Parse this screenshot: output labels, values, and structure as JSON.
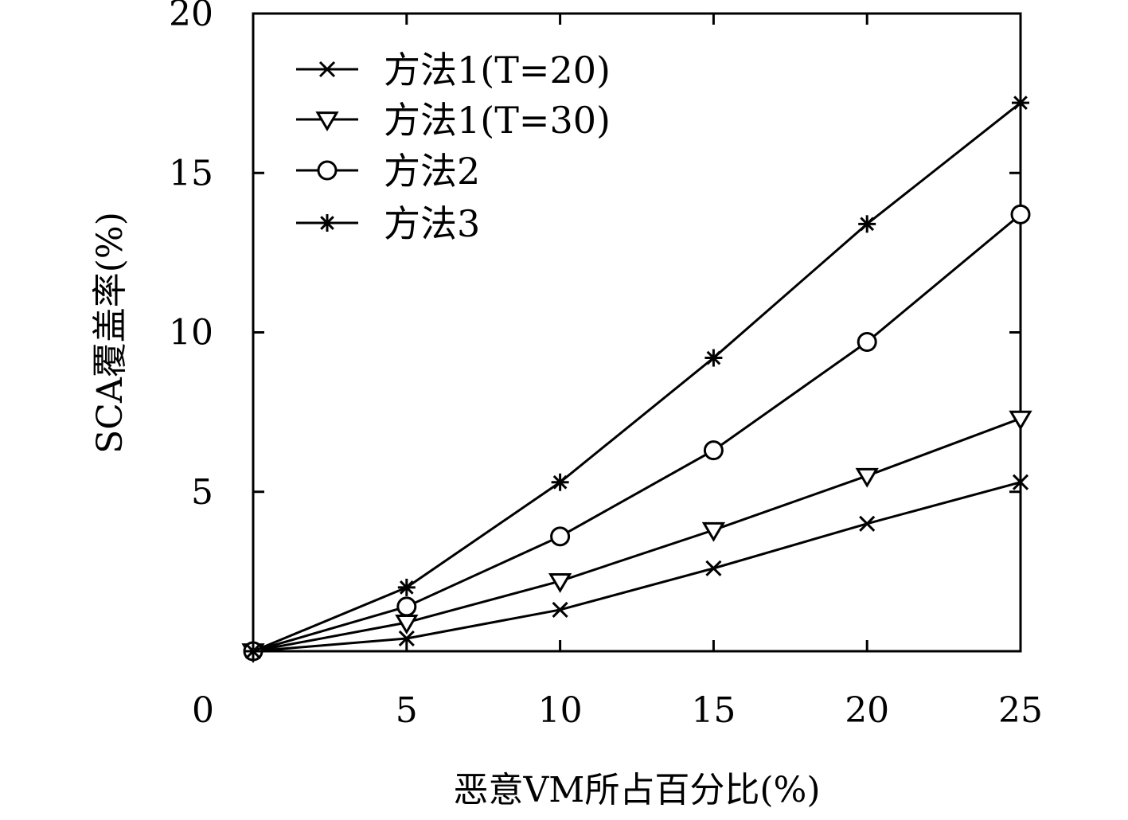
{
  "chart_data": {
    "type": "line",
    "title": "",
    "xlabel": "恶意VM所占百分比(%)",
    "ylabel": "SCA覆盖率(%)",
    "xlim": [
      0,
      25
    ],
    "ylim": [
      0,
      20
    ],
    "xticks": [
      0,
      5,
      10,
      15,
      20,
      25
    ],
    "yticks": [
      5,
      10,
      15,
      20
    ],
    "grid": false,
    "legend_position": "top-left",
    "line_color": "#000000",
    "series": [
      {
        "name": "方法1(T=20)",
        "marker": "x",
        "x": [
          0,
          5,
          10,
          15,
          20,
          25
        ],
        "y": [
          0,
          0.4,
          1.3,
          2.6,
          4.0,
          5.3
        ]
      },
      {
        "name": "方法1(T=30)",
        "marker": "triangle-down",
        "x": [
          0,
          5,
          10,
          15,
          20,
          25
        ],
        "y": [
          0,
          0.9,
          2.2,
          3.8,
          5.5,
          7.3
        ]
      },
      {
        "name": "方法2",
        "marker": "circle",
        "x": [
          0,
          5,
          10,
          15,
          20,
          25
        ],
        "y": [
          0,
          1.4,
          3.6,
          6.3,
          9.7,
          13.7
        ]
      },
      {
        "name": "方法3",
        "marker": "asterisk",
        "x": [
          0,
          5,
          10,
          15,
          20,
          25
        ],
        "y": [
          0,
          2.0,
          5.3,
          9.2,
          13.4,
          17.2
        ]
      }
    ]
  }
}
